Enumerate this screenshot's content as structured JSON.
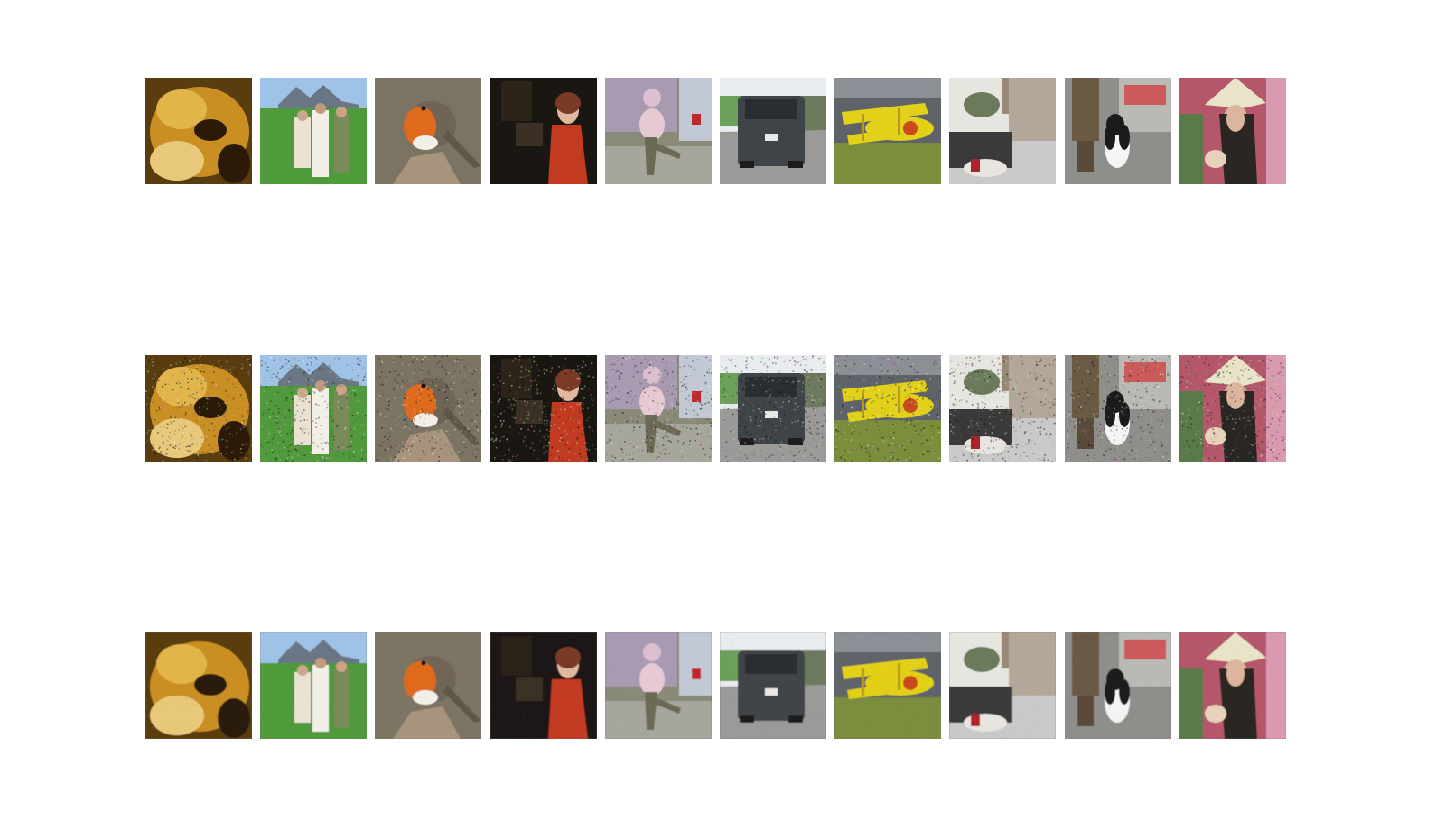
{
  "figure": {
    "rows": [
      {
        "kind": "original",
        "noise": 0.0,
        "blur": 0.0
      },
      {
        "kind": "noisy",
        "noise": 0.55,
        "blur": 0.0
      },
      {
        "kind": "denoised",
        "noise": 0.06,
        "blur": 0.6
      }
    ],
    "images": [
      {
        "subject": "kitten-closeup",
        "colors": {
          "bg": "#5a3d0e",
          "a": "#c98f22",
          "b": "#2b1a08",
          "c": "#e2b54a"
        }
      },
      {
        "subject": "family-on-lawn",
        "colors": {
          "sky": "#9fc3e6",
          "ground": "#4f9a3a",
          "a": "#e9e2d2",
          "b": "#5a5a66",
          "c": "#7a8a5a"
        }
      },
      {
        "subject": "robin-on-rock",
        "colors": {
          "bg": "#7b7463",
          "breast": "#e06a1c",
          "body": "#6f6556",
          "rock": "#a8947c"
        }
      },
      {
        "subject": "woman-on-phone-dark-room",
        "colors": {
          "bg": "#1a1712",
          "a": "#c23a20",
          "b": "#e2b8a0",
          "c": "#3a3026"
        }
      },
      {
        "subject": "girl-balancing-on-sidewalk",
        "colors": {
          "bg": "#8a8a78",
          "a": "#e7c9d4",
          "b": "#6c6a55",
          "c": "#c3c8d6"
        }
      },
      {
        "subject": "suv-rear-on-road",
        "colors": {
          "sky": "#e9ecef",
          "car": "#3f4448",
          "road": "#9a9a98",
          "a": "#6aa05a"
        }
      },
      {
        "subject": "yellow-biplane-on-grass",
        "colors": {
          "sky": "#5e636a",
          "plane": "#e3d018",
          "grass": "#7a8e3c",
          "a": "#b49a20"
        }
      },
      {
        "subject": "street-with-motorcycles",
        "colors": {
          "sky": "#e6e6e0",
          "a": "#3a3a3a",
          "b": "#b3a79a",
          "c": "#c9c9c9"
        }
      },
      {
        "subject": "spaniel-dog-on-street",
        "colors": {
          "bg": "#8e8e8a",
          "dog": "#f4f4f4",
          "b": "#1b1b1b",
          "a": "#6b5a44"
        }
      },
      {
        "subject": "woman-with-straw-hat-market",
        "colors": {
          "bg": "#b5576a",
          "face": "#dcb59c",
          "hat": "#e9e4c8",
          "a": "#2a2624"
        }
      }
    ]
  }
}
